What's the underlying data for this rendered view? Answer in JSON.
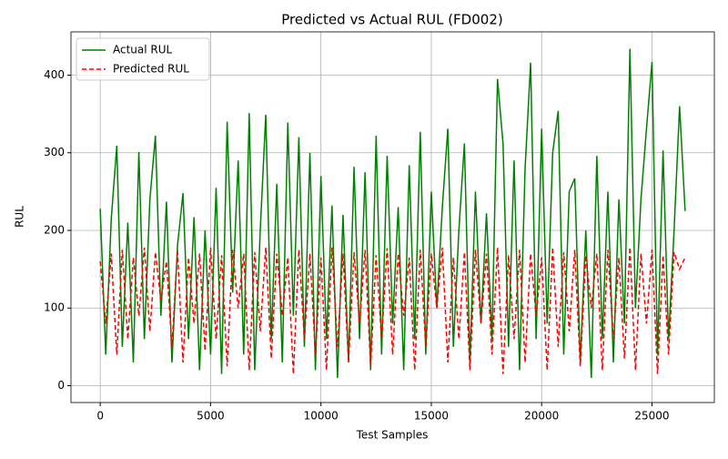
{
  "chart_data": {
    "type": "line",
    "title": "Predicted vs Actual RUL (FD002)",
    "x_label": "Test Samples",
    "y_label": "RUL",
    "x": [
      0,
      250,
      500,
      750,
      1000,
      1250,
      1500,
      1750,
      2000,
      2250,
      2500,
      2750,
      3000,
      3250,
      3500,
      3750,
      4000,
      4250,
      4500,
      4750,
      5000,
      5250,
      5500,
      5750,
      6000,
      6250,
      6500,
      6750,
      7000,
      7250,
      7500,
      7750,
      8000,
      8250,
      8500,
      8750,
      9000,
      9250,
      9500,
      9750,
      10000,
      10250,
      10500,
      10750,
      11000,
      11250,
      11500,
      11750,
      12000,
      12250,
      12500,
      12750,
      13000,
      13250,
      13500,
      13750,
      14000,
      14250,
      14500,
      14750,
      15000,
      15250,
      15500,
      15750,
      16000,
      16250,
      16500,
      16750,
      17000,
      17250,
      17500,
      17750,
      18000,
      18250,
      18500,
      18750,
      19000,
      19250,
      19500,
      19750,
      20000,
      20250,
      20500,
      20750,
      21000,
      21250,
      21500,
      21750,
      22000,
      22250,
      22500,
      22750,
      23000,
      23250,
      23500,
      23750,
      24000,
      24250,
      24500,
      24750,
      25000,
      25250,
      25500,
      25750,
      26000,
      26250,
      26500
    ],
    "series": [
      {
        "name": "Actual RUL",
        "color": "#008000",
        "dash": "solid",
        "values": [
          228,
          40,
          215,
          309,
          50,
          210,
          30,
          301,
          60,
          240,
          322,
          90,
          237,
          30,
          180,
          248,
          60,
          217,
          20,
          200,
          40,
          255,
          15,
          340,
          120,
          290,
          40,
          351,
          20,
          200,
          349,
          60,
          260,
          30,
          339,
          90,
          320,
          50,
          300,
          20,
          270,
          60,
          232,
          10,
          220,
          30,
          282,
          60,
          275,
          20,
          322,
          40,
          296,
          80,
          230,
          20,
          284,
          60,
          327,
          40,
          250,
          100,
          230,
          331,
          50,
          200,
          312,
          30,
          250,
          80,
          222,
          60,
          395,
          312,
          50,
          290,
          20,
          280,
          416,
          60,
          331,
          80,
          300,
          354,
          40,
          250,
          267,
          30,
          200,
          10,
          296,
          60,
          250,
          30,
          240,
          80,
          434,
          100,
          240,
          331,
          417,
          40,
          303,
          60,
          200,
          360,
          225
        ]
      },
      {
        "name": "Predicted RUL",
        "color": "#ff0000",
        "dash": "dashed",
        "values": [
          160,
          80,
          170,
          40,
          175,
          60,
          165,
          90,
          178,
          70,
          172,
          110,
          160,
          50,
          175,
          30,
          165,
          80,
          170,
          45,
          178,
          60,
          168,
          25,
          175,
          100,
          170,
          20,
          172,
          70,
          178,
          35,
          170,
          90,
          165,
          15,
          175,
          60,
          170,
          40,
          165,
          20,
          178,
          50,
          170,
          30,
          172,
          80,
          175,
          25,
          168,
          60,
          177,
          40,
          170,
          90,
          165,
          20,
          175,
          50,
          170,
          100,
          178,
          30,
          165,
          60,
          172,
          20,
          175,
          80,
          170,
          40,
          178,
          15,
          168,
          60,
          175,
          30,
          170,
          90,
          165,
          20,
          178,
          50,
          172,
          70,
          175,
          25,
          168,
          100,
          170,
          20,
          175,
          60,
          165,
          35,
          178,
          20,
          170,
          80,
          175,
          15,
          168,
          40,
          172,
          150,
          165
        ]
      }
    ],
    "xlim": [
      -1325,
      27825
    ],
    "xticks": [
      0,
      5000,
      10000,
      15000,
      20000,
      25000
    ],
    "ylim": [
      -21.7,
      455.7
    ],
    "yticks": [
      0,
      100,
      200,
      300,
      400
    ],
    "grid": true,
    "legend": "upper-left"
  }
}
